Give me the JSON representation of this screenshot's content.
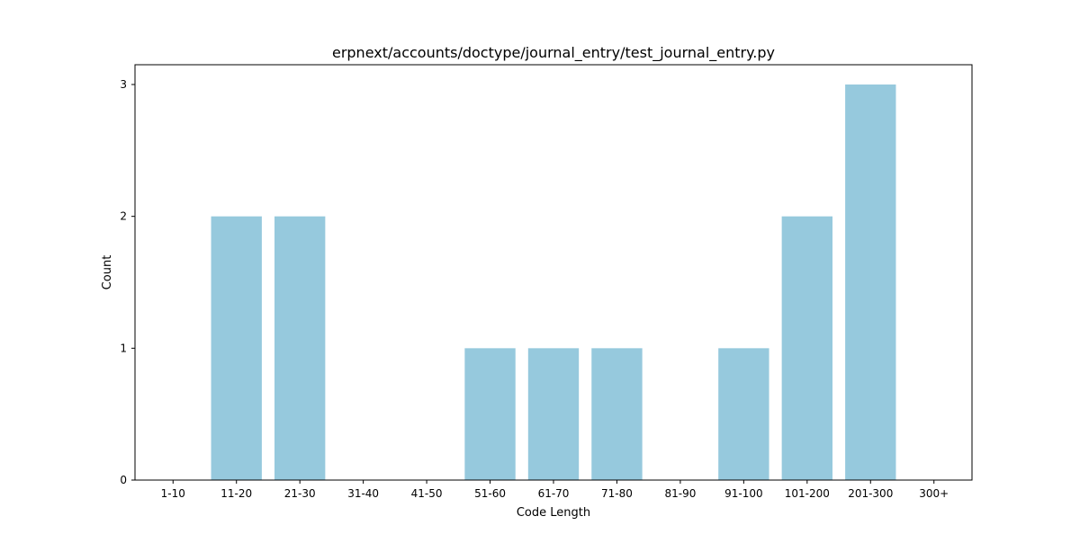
{
  "chart_data": {
    "type": "bar",
    "title": "erpnext/accounts/doctype/journal_entry/test_journal_entry.py",
    "xlabel": "Code Length",
    "ylabel": "Count",
    "categories": [
      "1-10",
      "11-20",
      "21-30",
      "31-40",
      "41-50",
      "51-60",
      "61-70",
      "71-80",
      "81-90",
      "91-100",
      "101-200",
      "201-300",
      "300+"
    ],
    "values": [
      0,
      2,
      2,
      0,
      0,
      1,
      1,
      1,
      0,
      1,
      2,
      3,
      0
    ],
    "ylim": [
      0,
      3.15
    ],
    "yticks": [
      0,
      1,
      2,
      3
    ],
    "grid": false,
    "bar_color": "#96c9dd"
  }
}
